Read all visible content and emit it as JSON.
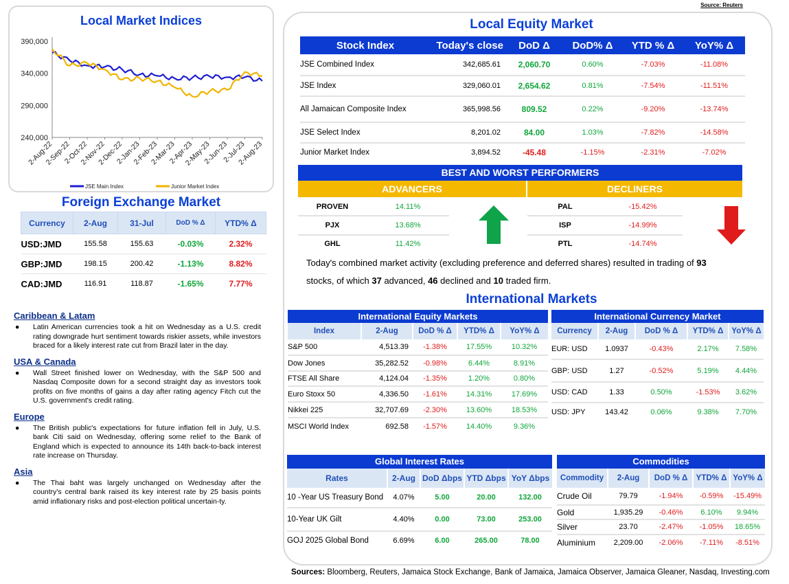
{
  "source_top": "Source: Reuters",
  "indices_panel": {
    "title": "Local Market Indices",
    "chart_data": {
      "type": "line",
      "title": "Local Market Indices",
      "x": [
        "2-Aug-22",
        "2-Sep-22",
        "2-Oct-22",
        "2-Nov-22",
        "2-Dec-22",
        "2-Jan-23",
        "2-Feb-23",
        "2-Mar-23",
        "2-Apr-23",
        "2-May-23",
        "2-Jun-23",
        "2-Jul-23",
        "2-Aug-23"
      ],
      "yticks": [
        "390,000",
        "340,000",
        "290,000",
        "240,000"
      ],
      "ylim": [
        240000,
        390000
      ],
      "series": [
        {
          "name": "JSE Main Index",
          "color": "#1f1fd0",
          "values": [
            372000,
            360000,
            352000,
            350000,
            346000,
            338000,
            336000,
            332000,
            333000,
            335000,
            334000,
            334000,
            328000
          ]
        },
        {
          "name": "Junior Market Index",
          "color": "#f0b400",
          "values": [
            378000,
            352000,
            356000,
            346000,
            330000,
            332000,
            328000,
            318000,
            304000,
            312000,
            314000,
            342000,
            336000
          ]
        }
      ],
      "legend": "bottom"
    }
  },
  "fx": {
    "title": "Foreign Exchange Market",
    "headers": [
      "Currency",
      "2-Aug",
      "31-Jul",
      "DoD % Δ",
      "YTD% Δ"
    ],
    "rows": [
      {
        "pair": "USD:JMD",
        "a": "155.58",
        "b": "155.63",
        "dod": "-0.03%",
        "ytd": "2.32%"
      },
      {
        "pair": "GBP:JMD",
        "a": "198.15",
        "b": "200.42",
        "dod": "-1.13%",
        "ytd": "8.82%"
      },
      {
        "pair": "CAD:JMD",
        "a": "116.91",
        "b": "118.87",
        "dod": "-1.65%",
        "ytd": "7.77%"
      }
    ]
  },
  "news": [
    {
      "heading": "Caribbean & Latam",
      "text": "Latin American currencies took a hit on Wednesday as a U.S. credit rating downgrade hurt sentiment towards riskier assets, while investors braced for a likely interest rate cut from Brazil later in the day."
    },
    {
      "heading": "USA & Canada",
      "text": "Wall Street finished lower on Wednesday, with the S&P 500 and Nasdaq Composite down for a second straight day as investors took profits on five months of gains a day after rating agency Fitch cut the U.S. government's credit rating."
    },
    {
      "heading": "Europe",
      "text": "The British public's expectations for future inflation fell in July, U.S. bank Citi said on Wednesday, offering some relief to the Bank of England which is expected to announce its 14th back-to-back interest rate increase on Thursday."
    },
    {
      "heading": "Asia",
      "text": "The Thai baht was largely unchanged on Wednesday after the country's central bank raised its key interest rate by 25 basis points amid inflationary risks and post-election political uncertain-ty."
    }
  ],
  "equity": {
    "title": "Local Equity Market",
    "headers": [
      "Stock Index",
      "Today's close",
      "DoD  Δ",
      "DoD% Δ",
      "YTD % Δ",
      "YoY% Δ"
    ],
    "rows": [
      {
        "name": "JSE Combined Index",
        "close": "342,685.61",
        "dod": "2,060.70",
        "dodp": "0.60%",
        "ytd": "-7.03%",
        "yoy": "-11.08%"
      },
      {
        "name": "JSE Index",
        "close": "329,060.01",
        "dod": "2,654.62",
        "dodp": "0.81%",
        "ytd": "-7.54%",
        "yoy": "-11.51%"
      },
      {
        "name": "All Jamaican Composite Index",
        "close": "365,998.56",
        "dod": "809.52",
        "dodp": "0.22%",
        "ytd": "-9.20%",
        "yoy": "-13.74%"
      },
      {
        "name": "JSE Select Index",
        "close": "8,201.02",
        "dod": "84.00",
        "dodp": "1.03%",
        "ytd": "-7.82%",
        "yoy": "-14.58%"
      },
      {
        "name": "Junior Market Index",
        "close": "3,894.52",
        "dod": "-45.48",
        "dodp": "-1.15%",
        "ytd": "-2.31%",
        "yoy": "-7.02%"
      }
    ]
  },
  "performers": {
    "title": "BEST AND WORST PERFORMERS",
    "advancers_label": "ADVANCERS",
    "decliners_label": "DECLINERS",
    "advancers": [
      {
        "sym": "PROVEN",
        "pct": "14.11%"
      },
      {
        "sym": "PJX",
        "pct": "13.68%"
      },
      {
        "sym": "GHL",
        "pct": "11.42%"
      }
    ],
    "decliners": [
      {
        "sym": "PAL",
        "pct": "-15.42%"
      },
      {
        "sym": "ISP",
        "pct": "-14.99%"
      },
      {
        "sym": "PTL",
        "pct": "-14.74%"
      }
    ]
  },
  "summary": {
    "t1": "Today's combined market activity (excluding preference and deferred shares) resulted in trading of ",
    "total": "93",
    "t2": "stocks, of which ",
    "adv": "37",
    "t3": " advanced, ",
    "dec": "46",
    "t4": " declined and ",
    "firm": "10",
    "t5": " traded firm."
  },
  "intl_title": "International Markets",
  "intl_equity": {
    "title": "International Equity Markets",
    "headers": [
      "Index",
      "2-Aug",
      "DoD % Δ",
      "YTD% Δ",
      "YoY% Δ"
    ],
    "rows": [
      {
        "name": "S&P 500",
        "v": "4,513.39",
        "dod": "-1.38%",
        "ytd": "17.55%",
        "yoy": "10.32%"
      },
      {
        "name": "Dow Jones",
        "v": "35,282.52",
        "dod": "-0.98%",
        "ytd": "6.44%",
        "yoy": "8.91%"
      },
      {
        "name": "FTSE All Share",
        "v": "4,124.04",
        "dod": "-1.35%",
        "ytd": "1.20%",
        "yoy": "0.80%"
      },
      {
        "name": "Euro Stoxx 50",
        "v": "4,336.50",
        "dod": "-1.61%",
        "ytd": "14.31%",
        "yoy": "17.69%"
      },
      {
        "name": "Nikkei 225",
        "v": "32,707.69",
        "dod": "-2.30%",
        "ytd": "13.60%",
        "yoy": "18.53%"
      },
      {
        "name": "MSCI World Index",
        "v": "692.58",
        "dod": "-1.57%",
        "ytd": "14.40%",
        "yoy": "9.36%"
      }
    ]
  },
  "intl_currency": {
    "title": "International Currency Market",
    "headers": [
      "Currency",
      "2-Aug",
      "DoD % Δ",
      "YTD% Δ",
      "YoY% Δ"
    ],
    "rows": [
      {
        "name": "EUR: USD",
        "v": "1.0937",
        "dod": "-0.43%",
        "ytd": "2.17%",
        "yoy": "7.58%"
      },
      {
        "name": "GBP: USD",
        "v": "1.27",
        "dod": "-0.52%",
        "ytd": "5.19%",
        "yoy": "4.44%"
      },
      {
        "name": "USD: CAD",
        "v": "1.33",
        "dod": "0.50%",
        "ytd": "-1.53%",
        "yoy": "3.62%"
      },
      {
        "name": "USD: JPY",
        "v": "143.42",
        "dod": "0.06%",
        "ytd": "9.38%",
        "yoy": "7.70%"
      }
    ]
  },
  "rates": {
    "title": "Global Interest Rates",
    "headers": [
      "Rates",
      "2-Aug",
      "DoD Δbps",
      "YTD Δbps",
      "YoY Δbps"
    ],
    "rows": [
      {
        "name": "10 -Year US Treasury Bond",
        "v": "4.07%",
        "dod": "5.00",
        "ytd": "20.00",
        "yoy": "132.00"
      },
      {
        "name": "10-Year UK Gilt",
        "v": "4.40%",
        "dod": "0.00",
        "ytd": "73.00",
        "yoy": "253.00"
      },
      {
        "name": "GOJ 2025 Global Bond",
        "v": "6.69%",
        "dod": "6.00",
        "ytd": "265.00",
        "yoy": "78.00"
      }
    ]
  },
  "commodities": {
    "title": "Commodities",
    "headers": [
      "Commodity",
      "2-Aug",
      "DoD % Δ",
      "YTD% Δ",
      "YoY% Δ"
    ],
    "rows": [
      {
        "name": "Crude Oil",
        "v": "79.79",
        "dod": "-1.94%",
        "ytd": "-0.59%",
        "yoy": "-15.49%"
      },
      {
        "name": "Gold",
        "v": "1,935.29",
        "dod": "-0.46%",
        "ytd": "6.10%",
        "yoy": "9.94%"
      },
      {
        "name": "Silver",
        "v": "23.70",
        "dod": "-2.47%",
        "ytd": "-1.05%",
        "yoy": "18.65%"
      },
      {
        "name": "Aluminium",
        "v": "2,209.00",
        "dod": "-2.06%",
        "ytd": "-7.11%",
        "yoy": "-8.51%"
      }
    ]
  },
  "footer": {
    "label": "Sources:",
    "text": " Bloomberg, Reuters, Jamaica Stock Exchange, Bank of Jamaica, Jamaica Observer, Jamaica Gleaner, Nasdaq, Investing.com"
  },
  "colors": {
    "brand_blue": "#0c3bd1",
    "gold": "#f5b800",
    "positive": "#10a63a",
    "negative": "#e01b1b"
  }
}
